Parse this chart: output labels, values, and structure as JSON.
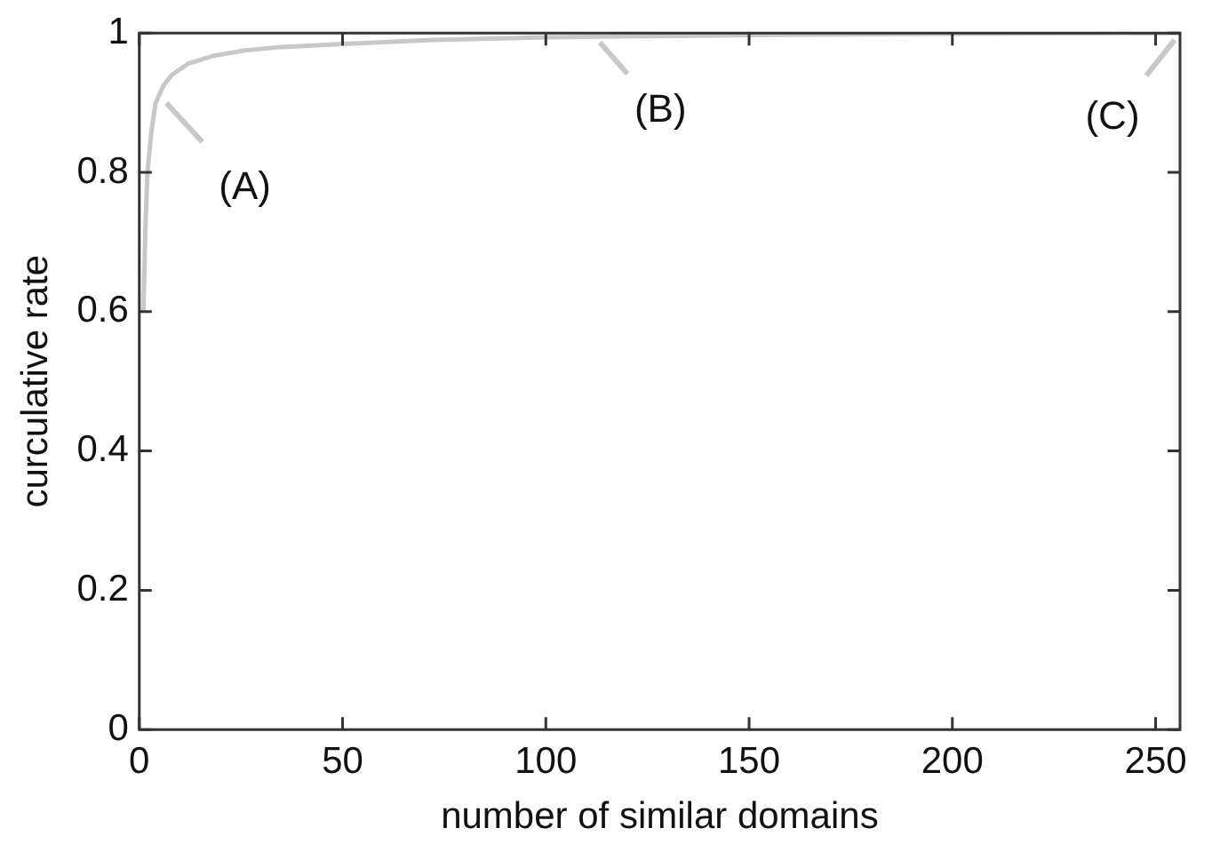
{
  "chart_data": {
    "type": "line",
    "xlabel": "number of similar domains",
    "ylabel": "curculative rate",
    "x": [
      1,
      1.5,
      2,
      3,
      4,
      6,
      8,
      12,
      18,
      26,
      35,
      49,
      72,
      100,
      150,
      200,
      256
    ],
    "series": [
      {
        "color": "#c8c8c8",
        "values": [
          0.6,
          0.72,
          0.8,
          0.86,
          0.9,
          0.925,
          0.94,
          0.956,
          0.967,
          0.975,
          0.98,
          0.984,
          0.99,
          0.994,
          0.997,
          0.999,
          1
        ]
      }
    ],
    "xlim": [
      0,
      256
    ],
    "xticks": [
      0,
      50,
      100,
      150,
      200,
      250
    ],
    "ylim": [
      0,
      1
    ],
    "yticks": [
      0,
      0.2,
      0.4,
      0.6,
      0.8,
      1
    ],
    "grid": false,
    "legend": false,
    "marker": "none",
    "line_style": "solid",
    "annotations": [
      {
        "text": "(A)",
        "x": 5,
        "y": 0.91
      },
      {
        "text": "(B)",
        "x": 112,
        "y": 0.995
      },
      {
        "text": "(C)",
        "x": 256,
        "y": 1
      }
    ]
  }
}
